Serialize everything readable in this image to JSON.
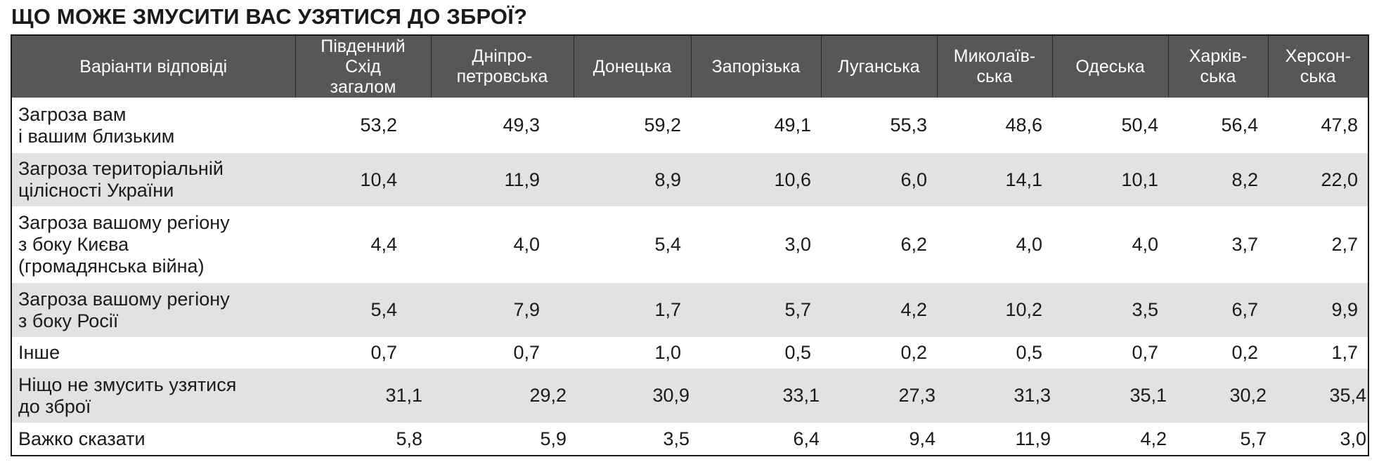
{
  "title": "ЩО МОЖЕ ЗМУСИТИ ВАС УЗЯТИСЯ ДО ЗБРОЇ?",
  "chart_data": {
    "type": "table",
    "title": "ЩО МОЖЕ ЗМУСИТИ ВАС УЗЯТИСЯ ДО ЗБРОЇ?",
    "header": [
      "Варіанти відповіді",
      "Південний\nСхід\nзагалом",
      "Дніпро-\nпетровська",
      "Донецька",
      "Запорізька",
      "Луганська",
      "Миколаїв-\nська",
      "Одеська",
      "Харків-\nська",
      "Херсон-\nська"
    ],
    "rows": [
      {
        "label": "Загроза вам\nі вашим близьким",
        "values": [
          "53,2",
          "49,3",
          "59,2",
          "49,1",
          "55,3",
          "48,6",
          "50,4",
          "56,4",
          "47,8"
        ]
      },
      {
        "label": "Загроза територіальній\nцілісності України",
        "values": [
          "10,4",
          "11,9",
          "8,9",
          "10,6",
          "6,0",
          "14,1",
          "10,1",
          "8,2",
          "22,0"
        ]
      },
      {
        "label": "Загроза вашому регіону\nз боку Києва\n(громадянська війна)",
        "values": [
          "4,4",
          "4,0",
          "5,4",
          "3,0",
          "6,2",
          "4,0",
          "4,0",
          "3,7",
          "2,7"
        ]
      },
      {
        "label": "Загроза вашому регіону\nз боку Росії",
        "values": [
          "5,4",
          "7,9",
          "1,7",
          "5,7",
          "4,2",
          "10,2",
          "3,5",
          "6,7",
          "9,9"
        ]
      },
      {
        "label": "Інше",
        "values": [
          "0,7",
          "0,7",
          "1,0",
          "0,5",
          "0,2",
          "0,5",
          "0,7",
          "0,2",
          "1,7"
        ]
      },
      {
        "label": "Ніщо не змусить узятися\nдо зброї",
        "values": [
          "31,1",
          "29,2",
          "30,9",
          "33,1",
          "27,3",
          "31,3",
          "35,1",
          "30,2",
          "35,4"
        ]
      },
      {
        "label": "Важко сказати",
        "values": [
          "5,8",
          "5,9",
          "3,5",
          "6,4",
          "9,4",
          "11,9",
          "4,2",
          "5,7",
          "3,0"
        ]
      }
    ]
  },
  "colors": {
    "header_bg": "#575757",
    "header_text": "#ffffff",
    "row_alt_bg": "#e2e2e2",
    "row_bg": "#ffffff",
    "border": "#1a1a1a"
  }
}
